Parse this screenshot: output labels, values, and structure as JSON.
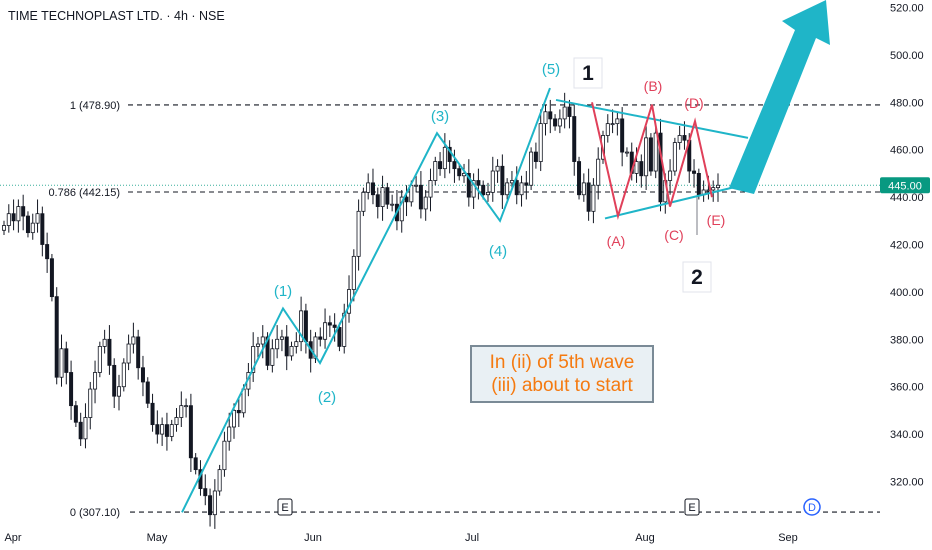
{
  "header": {
    "title": "TIME TECHNOPLAST LTD. · 4h · NSE"
  },
  "annotation": {
    "line1": "In (ii) of 5th wave",
    "line2": "(iii) about to start"
  },
  "colors": {
    "up": "#089981",
    "down": "#f23645",
    "wave_teal": "#1fb5c8",
    "wave_red": "#e0405a",
    "arrow": "#1fb5c8"
  },
  "chart_data": {
    "type": "candlestick",
    "x_ticks": [
      "Apr",
      "May",
      "Jun",
      "Jul",
      "Aug",
      "Sep"
    ],
    "y_ticks": [
      "320.00",
      "340.00",
      "360.00",
      "380.00",
      "400.00",
      "420.00",
      "440.00",
      "460.00",
      "480.00",
      "500.00",
      "520.00"
    ],
    "ylim": [
      305,
      528
    ],
    "current_price": {
      "label": "445.00",
      "value": 445
    },
    "fib_levels": [
      {
        "label": "1 (478.90)",
        "value": 478.9
      },
      {
        "label": "0.786 (442.15)",
        "value": 442.15
      },
      {
        "label": "0 (307.10)",
        "value": 307.1
      }
    ],
    "event_markers": [
      {
        "label": "E",
        "date": "May 29"
      },
      {
        "label": "E",
        "date": "Aug 12"
      },
      {
        "label": "D",
        "date": "Sep 01"
      }
    ],
    "wave_labels_teal": [
      "(1)",
      "(2)",
      "(3)",
      "(4)",
      "(5)"
    ],
    "wave_labels_red": [
      "(A)",
      "(B)",
      "(C)",
      "(D)",
      "(E)"
    ],
    "wave_labels_major": [
      "1",
      "2"
    ],
    "closes": [
      428,
      433,
      430,
      436,
      432,
      425,
      429,
      433,
      420,
      414,
      398,
      364,
      376,
      366,
      352,
      345,
      338,
      347,
      359,
      366,
      377,
      380,
      369,
      356,
      360,
      370,
      378,
      381,
      368,
      362,
      353,
      344,
      340,
      344,
      339,
      344,
      347,
      352,
      352,
      330,
      325,
      317,
      314,
      306,
      316,
      325,
      337,
      343,
      350,
      349,
      359,
      366,
      377,
      378,
      381,
      369,
      376,
      380,
      381,
      373,
      377,
      379,
      392,
      379,
      372,
      381,
      380,
      387,
      386,
      385,
      377,
      391,
      401,
      415,
      434,
      442,
      446,
      441,
      436,
      444,
      437,
      437,
      430,
      440,
      438,
      445,
      445,
      435,
      440,
      447,
      455,
      452,
      461,
      455,
      452,
      449,
      450,
      440,
      447,
      445,
      441,
      442,
      451,
      453,
      441,
      446,
      447,
      441,
      446,
      445,
      459,
      455,
      471,
      476,
      473,
      470,
      473,
      478,
      474,
      455,
      441,
      446,
      434,
      445,
      456,
      466,
      471,
      471,
      473,
      459,
      459,
      450,
      455,
      449,
      465,
      451,
      467,
      438,
      447,
      451,
      463,
      466,
      464,
      451,
      450,
      441,
      443,
      443,
      444,
      445
    ]
  }
}
